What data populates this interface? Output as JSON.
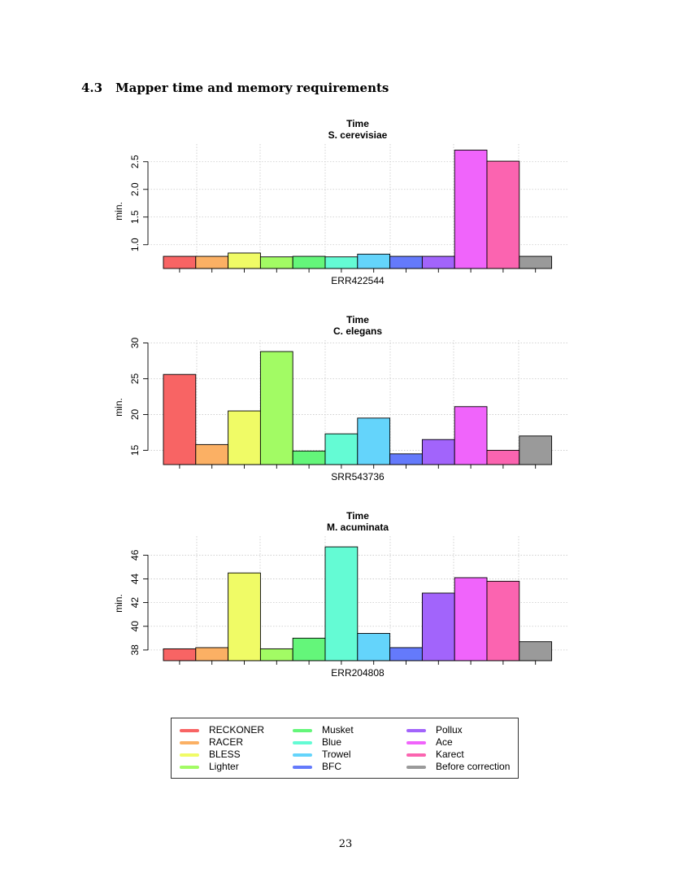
{
  "section": {
    "number": "4.3",
    "title": "Mapper time and memory requirements"
  },
  "page_number": "23",
  "legend": {
    "items": [
      {
        "label": "RECKONER",
        "color": "#f86464"
      },
      {
        "label": "RACER",
        "color": "#fbb064"
      },
      {
        "label": "BLESS",
        "color": "#f0fb66"
      },
      {
        "label": "Lighter",
        "color": "#a2fb64"
      },
      {
        "label": "Musket",
        "color": "#64f67a"
      },
      {
        "label": "Blue",
        "color": "#64fbd4"
      },
      {
        "label": "Trowel",
        "color": "#64d4fb"
      },
      {
        "label": "BFC",
        "color": "#647afb"
      },
      {
        "label": "Pollux",
        "color": "#a264fb"
      },
      {
        "label": "Ace",
        "color": "#f064fb"
      },
      {
        "label": "Karect",
        "color": "#fb64b0"
      },
      {
        "label": "Before correction",
        "color": "#9a9a9a"
      }
    ]
  },
  "chart_data": [
    {
      "type": "bar",
      "title": "Time",
      "subtitle": "S. cerevisiae",
      "xlabel": "ERR422544",
      "ylabel": "min.",
      "ylim": [
        0.57,
        2.82
      ],
      "yticks": [
        "1.0",
        "1.5",
        "2.0",
        "2.5"
      ],
      "categories": [
        "RECKONER",
        "RACER",
        "BLESS",
        "Lighter",
        "Musket",
        "Blue",
        "Trowel",
        "BFC",
        "Pollux",
        "Ace",
        "Karect",
        "Before correction"
      ],
      "values": [
        0.79,
        0.79,
        0.85,
        0.78,
        0.79,
        0.78,
        0.83,
        0.79,
        0.79,
        2.71,
        2.51,
        0.79
      ]
    },
    {
      "type": "bar",
      "title": "Time",
      "subtitle": "C. elegans",
      "xlabel": "SRR543736",
      "ylabel": "min.",
      "ylim": [
        13.0,
        30.4
      ],
      "yticks": [
        "15",
        "20",
        "25",
        "30"
      ],
      "categories": [
        "RECKONER",
        "RACER",
        "BLESS",
        "Lighter",
        "Musket",
        "Blue",
        "Trowel",
        "BFC",
        "Pollux",
        "Ace",
        "Karect",
        "Before correction"
      ],
      "values": [
        25.6,
        15.8,
        20.5,
        28.8,
        14.9,
        17.3,
        19.5,
        14.5,
        16.5,
        21.1,
        15.0,
        17.0
      ]
    },
    {
      "type": "bar",
      "title": "Time",
      "subtitle": "M. acuminata",
      "xlabel": "ERR204808",
      "ylabel": "min.",
      "ylim": [
        37.1,
        47.6
      ],
      "yticks": [
        "38",
        "40",
        "42",
        "44",
        "46"
      ],
      "categories": [
        "RECKONER",
        "RACER",
        "BLESS",
        "Lighter",
        "Musket",
        "Blue",
        "Trowel",
        "BFC",
        "Pollux",
        "Ace",
        "Karect",
        "Before correction"
      ],
      "values": [
        38.1,
        38.2,
        44.5,
        38.1,
        39.0,
        46.7,
        39.4,
        38.2,
        42.8,
        44.1,
        43.8,
        38.7
      ]
    }
  ]
}
